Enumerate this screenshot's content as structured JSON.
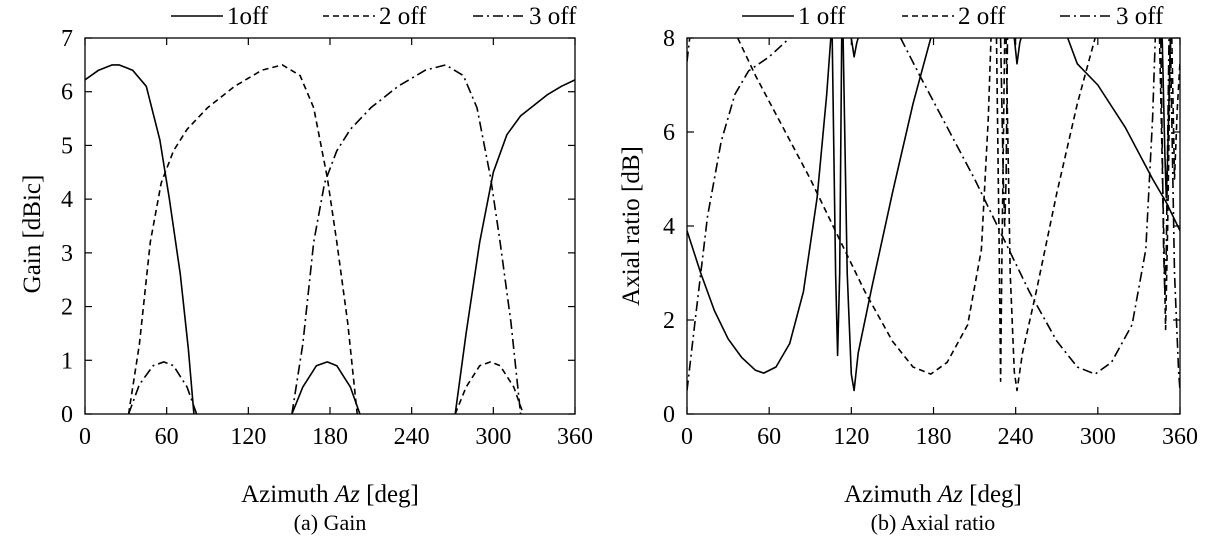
{
  "chart_data": [
    {
      "type": "line",
      "caption": "(a) Gain",
      "xlabel": "Azimuth Az [deg]",
      "xlabel_main": "Azimuth ",
      "xlabel_var": "Az",
      "xlabel_unit": " [deg]",
      "ylabel": "Gain [dBic]",
      "xlim": [
        0,
        360
      ],
      "ylim": [
        0,
        7
      ],
      "x_ticks": [
        0,
        60,
        120,
        180,
        240,
        300,
        360
      ],
      "y_ticks": [
        0,
        1,
        2,
        3,
        4,
        5,
        6,
        7
      ],
      "legend_position": "top",
      "series": [
        {
          "name": "1off",
          "style": "solid",
          "segments": [
            [
              [
                0,
                6.22
              ],
              [
                10,
                6.4
              ],
              [
                20,
                6.5
              ],
              [
                25,
                6.5
              ],
              [
                35,
                6.4
              ],
              [
                45,
                6.1
              ],
              [
                55,
                5.1
              ],
              [
                62,
                4.0
              ],
              [
                70,
                2.6
              ],
              [
                76,
                1.2
              ],
              [
                80,
                0
              ]
            ],
            [
              [
                152,
                0
              ],
              [
                160,
                0.5
              ],
              [
                170,
                0.9
              ],
              [
                178,
                0.97
              ],
              [
                185,
                0.9
              ],
              [
                195,
                0.5
              ],
              [
                202,
                0
              ]
            ],
            [
              [
                272,
                0
              ],
              [
                280,
                1.5
              ],
              [
                290,
                3.2
              ],
              [
                300,
                4.5
              ],
              [
                310,
                5.2
              ],
              [
                320,
                5.55
              ],
              [
                330,
                5.75
              ],
              [
                340,
                5.95
              ],
              [
                350,
                6.1
              ],
              [
                360,
                6.22
              ]
            ]
          ]
        },
        {
          "name": "2 off",
          "style": "dashed",
          "segments": [
            [
              [
                32,
                0
              ],
              [
                40,
                1.3
              ],
              [
                48,
                3.2
              ],
              [
                56,
                4.3
              ],
              [
                65,
                4.9
              ],
              [
                75,
                5.3
              ],
              [
                90,
                5.7
              ],
              [
                110,
                6.1
              ],
              [
                130,
                6.4
              ],
              [
                145,
                6.5
              ],
              [
                158,
                6.3
              ],
              [
                168,
                5.7
              ],
              [
                178,
                4.4
              ],
              [
                185,
                3.2
              ],
              [
                193,
                1.7
              ],
              [
                200,
                0
              ]
            ],
            [
              [
                272,
                0
              ],
              [
                280,
                0.5
              ],
              [
                290,
                0.9
              ],
              [
                298,
                0.97
              ],
              [
                305,
                0.9
              ],
              [
                315,
                0.5
              ],
              [
                322,
                0
              ]
            ]
          ]
        },
        {
          "name": "3 off",
          "style": "dashdot",
          "segments": [
            [
              [
                32,
                0
              ],
              [
                40,
                0.55
              ],
              [
                50,
                0.9
              ],
              [
                58,
                0.97
              ],
              [
                65,
                0.9
              ],
              [
                75,
                0.5
              ],
              [
                82,
                0
              ]
            ],
            [
              [
                152,
                0
              ],
              [
                160,
                1.3
              ],
              [
                168,
                3.2
              ],
              [
                176,
                4.3
              ],
              [
                185,
                4.9
              ],
              [
                195,
                5.3
              ],
              [
                210,
                5.7
              ],
              [
                230,
                6.1
              ],
              [
                250,
                6.4
              ],
              [
                265,
                6.5
              ],
              [
                278,
                6.3
              ],
              [
                288,
                5.7
              ],
              [
                298,
                4.4
              ],
              [
                305,
                3.2
              ],
              [
                313,
                1.7
              ],
              [
                320,
                0
              ]
            ]
          ]
        }
      ]
    },
    {
      "type": "line",
      "caption": "(b) Axial ratio",
      "xlabel": "Azimuth Az [deg]",
      "xlabel_main": "Azimuth ",
      "xlabel_var": "Az",
      "xlabel_unit": " [deg]",
      "ylabel": "Axial ratio [dB]",
      "xlim": [
        0,
        360
      ],
      "ylim": [
        0,
        8
      ],
      "x_ticks": [
        0,
        60,
        120,
        180,
        240,
        300,
        360
      ],
      "y_ticks": [
        0,
        2,
        4,
        6,
        8
      ],
      "legend_position": "top",
      "series": [
        {
          "name": "1 off",
          "style": "solid",
          "segments": [
            [
              [
                0,
                3.9
              ],
              [
                10,
                3.0
              ],
              [
                20,
                2.2
              ],
              [
                30,
                1.6
              ],
              [
                40,
                1.2
              ],
              [
                50,
                0.93
              ],
              [
                56,
                0.87
              ],
              [
                65,
                1.0
              ],
              [
                75,
                1.5
              ],
              [
                85,
                2.6
              ],
              [
                95,
                4.6
              ],
              [
                102,
                6.8
              ],
              [
                105,
                8
              ]
            ],
            [
              [
                106,
                8
              ],
              [
                108.5,
                3.0
              ],
              [
                110,
                1.25
              ],
              [
                111.5,
                3.0
              ],
              [
                113,
                8
              ]
            ],
            [
              [
                114,
                8
              ],
              [
                117,
                3.0
              ],
              [
                120,
                0.85
              ],
              [
                122,
                0.5
              ],
              [
                125,
                1.3
              ],
              [
                135,
                2.7
              ],
              [
                150,
                4.7
              ],
              [
                165,
                6.6
              ],
              [
                178,
                8
              ]
            ],
            [
              [
                120,
                8
              ],
              [
                122,
                7.6
              ],
              [
                124,
                7.9
              ],
              [
                125,
                8
              ]
            ],
            [
              [
                239,
                8
              ],
              [
                241,
                7.45
              ],
              [
                243,
                7.9
              ],
              [
                244,
                8
              ]
            ],
            [
              [
                278,
                8
              ],
              [
                285,
                7.45
              ],
              [
                300,
                7.0
              ],
              [
                320,
                6.1
              ],
              [
                340,
                5.0
              ],
              [
                350,
                4.5
              ],
              [
                360,
                3.9
              ]
            ],
            [
              [
                347,
                8
              ],
              [
                349,
                5.5
              ],
              [
                350,
                4.6
              ],
              [
                351,
                5.5
              ],
              [
                353,
                8
              ]
            ]
          ]
        },
        {
          "name": "2 off",
          "style": "dashed",
          "segments": [
            [
              [
                37,
                8
              ],
              [
                50,
                7.2
              ],
              [
                70,
                6.1
              ],
              [
                90,
                5.0
              ],
              [
                110,
                3.8
              ],
              [
                130,
                2.6
              ],
              [
                150,
                1.55
              ],
              [
                165,
                1.0
              ],
              [
                178,
                0.85
              ],
              [
                190,
                1.1
              ],
              [
                205,
                1.9
              ],
              [
                215,
                3.5
              ],
              [
                220,
                6.3
              ],
              [
                222,
                8
              ]
            ],
            [
              [
                226,
                8
              ],
              [
                228,
                3.5
              ],
              [
                229,
                0.7
              ],
              [
                230,
                3.5
              ],
              [
                232,
                8
              ]
            ],
            [
              [
                233,
                8
              ],
              [
                236,
                3.0
              ],
              [
                239,
                0.9
              ],
              [
                241,
                0.5
              ],
              [
                245,
                1.3
              ],
              [
                255,
                2.6
              ],
              [
                270,
                4.7
              ],
              [
                285,
                6.6
              ],
              [
                298,
                8
              ]
            ],
            [
              [
                345,
                8
              ],
              [
                348,
                4.0
              ],
              [
                349.5,
                1.8
              ],
              [
                351,
                4.0
              ],
              [
                353,
                8
              ]
            ],
            [
              [
                354,
                8
              ],
              [
                356,
                5.0
              ],
              [
                358,
                6.5
              ],
              [
                360,
                7.5
              ]
            ]
          ]
        },
        {
          "name": "3 off",
          "style": "dashdot",
          "segments": [
            [
              [
                0,
                7.5
              ],
              [
                2,
                8
              ]
            ],
            [
              [
                0,
                0.5
              ],
              [
                6,
                2.0
              ],
              [
                15,
                4.2
              ],
              [
                25,
                5.8
              ],
              [
                35,
                6.8
              ],
              [
                45,
                7.3
              ],
              [
                60,
                7.6
              ],
              [
                75,
                8
              ]
            ],
            [
              [
                156,
                8
              ],
              [
                170,
                7.2
              ],
              [
                190,
                6.1
              ],
              [
                210,
                5.0
              ],
              [
                230,
                3.8
              ],
              [
                250,
                2.6
              ],
              [
                270,
                1.55
              ],
              [
                285,
                1.0
              ],
              [
                298,
                0.85
              ],
              [
                310,
                1.1
              ],
              [
                325,
                1.9
              ],
              [
                335,
                3.5
              ],
              [
                340,
                6.3
              ],
              [
                342,
                8
              ]
            ],
            [
              [
                229,
                8
              ],
              [
                231,
                5.0
              ],
              [
                232,
                4.0
              ],
              [
                233,
                5.0
              ],
              [
                234,
                8
              ]
            ],
            [
              [
                346,
                8
              ],
              [
                348,
                3.5
              ],
              [
                349,
                2.5
              ],
              [
                350,
                3.5
              ],
              [
                352,
                8
              ]
            ],
            [
              [
                353,
                8
              ],
              [
                356,
                3.0
              ],
              [
                359,
                0.9
              ],
              [
                360,
                0.5
              ]
            ]
          ]
        }
      ]
    }
  ]
}
